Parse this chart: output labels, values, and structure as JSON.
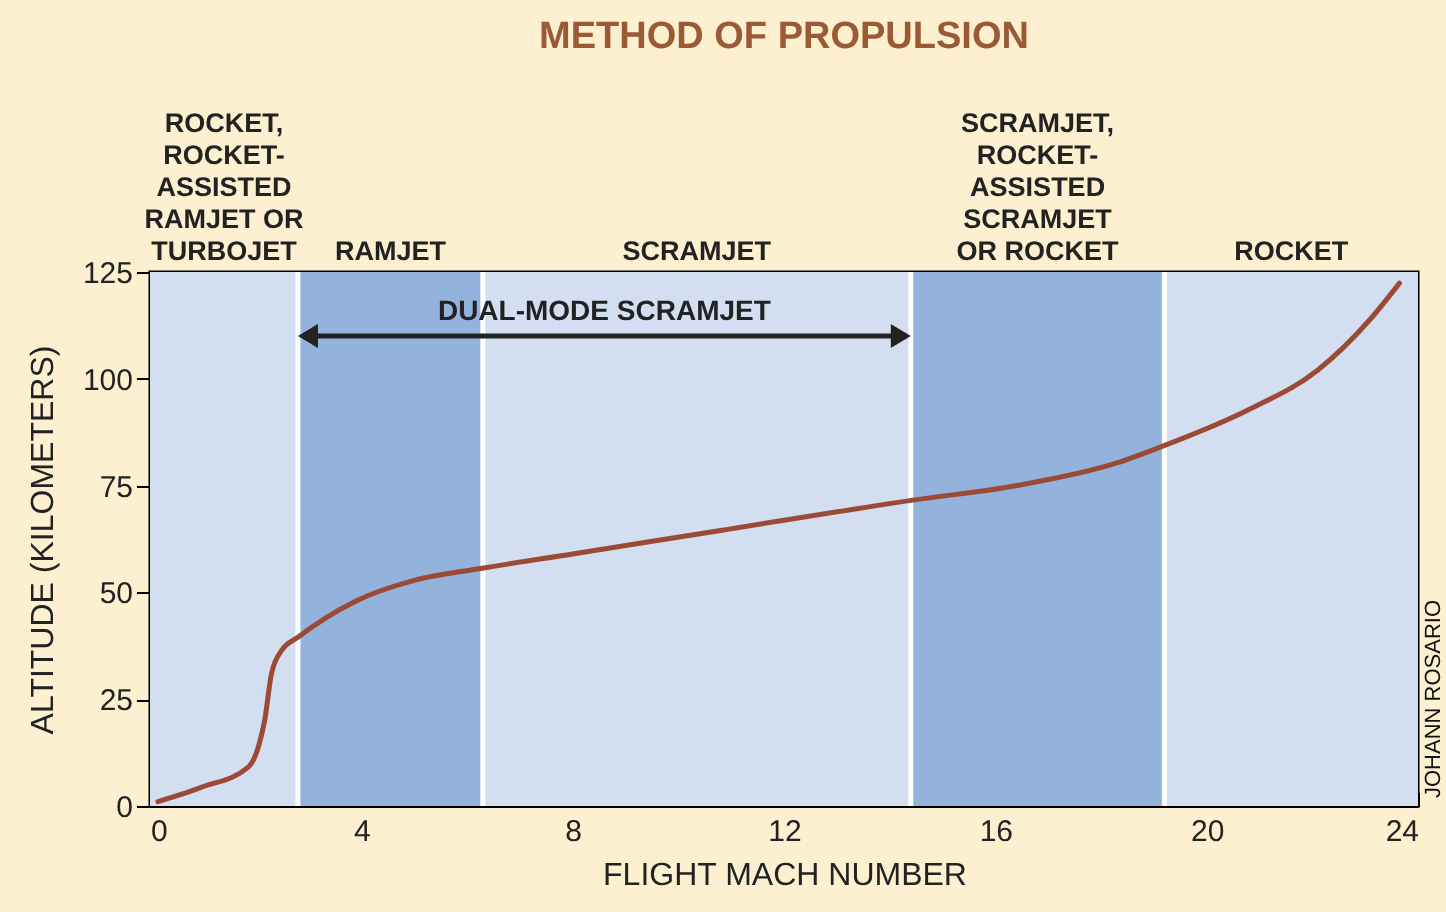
{
  "chart_data": {
    "type": "line",
    "title": "METHOD OF PROPULSION",
    "xlabel": "FLIGHT MACH NUMBER",
    "ylabel": "ALTITUDE (KILOMETERS)",
    "x": [
      0.15,
      0.98,
      1.86,
      2.05,
      2.17,
      2.3,
      2.49,
      2.8,
      3.9,
      5.0,
      6.26,
      8.0,
      10.8,
      14.44,
      16.45,
      18.3,
      19.1,
      20.8,
      22.1,
      23.1,
      23.65
    ],
    "series": [
      {
        "color": "#9b4a35",
        "values": [
          1,
          4.4,
          9.1,
          13.8,
          20,
          31,
          36.4,
          39.5,
          48,
          52.8,
          55.6,
          59,
          64.5,
          71.6,
          75.1,
          80.3,
          83.9,
          92.8,
          102,
          114,
          122.4
        ]
      }
    ],
    "xlim": [
      0,
      24
    ],
    "ylim": [
      0,
      125
    ],
    "xticks": [
      0,
      4,
      8,
      12,
      16,
      20,
      24
    ],
    "yticks": [
      0,
      25,
      50,
      75,
      100,
      125
    ],
    "bands": [
      {
        "axis": "x",
        "from": 0,
        "to": 2.8,
        "label": "ROCKET,\nROCKET-\nASSISTED\nRAMJET OR\nTURBOJET",
        "color": "#d3dff0"
      },
      {
        "axis": "x",
        "from": 2.8,
        "to": 6.3,
        "label": "RAMJET",
        "color": "#94b3dc"
      },
      {
        "axis": "x",
        "from": 6.3,
        "to": 14.4,
        "label": "SCRAMJET",
        "color": "#d3dff0"
      },
      {
        "axis": "x",
        "from": 14.4,
        "to": 19.2,
        "label": "SCRAMJET,\nROCKET-\nASSISTED\nSCRAMJET\nOR ROCKET",
        "color": "#94b3dc"
      },
      {
        "axis": "x",
        "from": 19.2,
        "to": 24,
        "label": "ROCKET",
        "color": "#d3dff0"
      }
    ],
    "annotations": [
      "DUAL-MODE SCRAMJET",
      "JOHANN ROSARIO"
    ],
    "grid": false,
    "marker": "none",
    "line_style": "solid"
  }
}
